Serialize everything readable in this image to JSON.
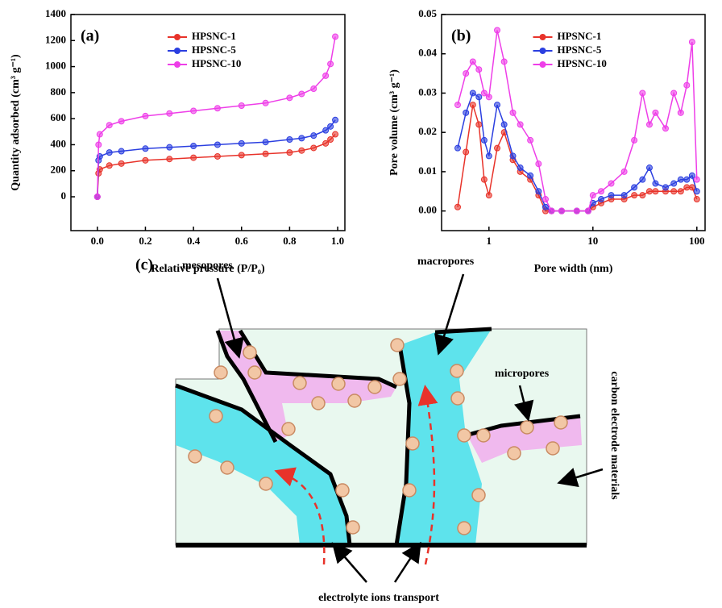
{
  "chart_data": [
    {
      "type": "line",
      "panel_label": "(a)",
      "x_label": "Relative pressure (P/P₀)",
      "y_label": "Quantity adsorbed (cm³ g⁻¹)",
      "x": [
        0.0,
        0.005,
        0.01,
        0.05,
        0.1,
        0.2,
        0.3,
        0.4,
        0.5,
        0.6,
        0.7,
        0.8,
        0.85,
        0.9,
        0.95,
        0.97,
        0.99
      ],
      "series": [
        {
          "name": "HPSNC-1",
          "color": "#e8332a",
          "values": [
            0,
            180,
            210,
            240,
            255,
            280,
            290,
            300,
            310,
            320,
            330,
            340,
            355,
            375,
            410,
            440,
            480
          ]
        },
        {
          "name": "HPSNC-5",
          "color": "#2b3fe0",
          "values": [
            0,
            280,
            310,
            340,
            350,
            370,
            380,
            390,
            400,
            410,
            420,
            440,
            450,
            470,
            510,
            540,
            590
          ]
        },
        {
          "name": "HPSNC-10",
          "color": "#ee3ee8",
          "values": [
            0,
            400,
            480,
            550,
            580,
            620,
            640,
            660,
            680,
            700,
            720,
            760,
            790,
            830,
            930,
            1020,
            1230
          ]
        }
      ],
      "xlim": [
        -0.11,
        1.03
      ],
      "ylim": [
        -260,
        1400
      ],
      "xticks": [
        {
          "value": 0,
          "label": "0.0"
        },
        0.2,
        0.4,
        0.6,
        0.8,
        {
          "value": 1,
          "label": "1.0"
        }
      ],
      "yticks": [
        0,
        200,
        400,
        600,
        800,
        1000,
        1200,
        1400
      ],
      "legend": "upper center"
    },
    {
      "type": "line",
      "panel_label": "(b)",
      "x_label": "Pore width (nm)",
      "y_label": "Pore volume (cm³ g⁻¹)",
      "xlog": true,
      "x": [
        0.5,
        0.6,
        0.7,
        0.8,
        0.9,
        1.0,
        1.2,
        1.4,
        1.7,
        2,
        2.5,
        3,
        3.5,
        4,
        5,
        7,
        9,
        10,
        12,
        15,
        20,
        25,
        30,
        35,
        40,
        50,
        60,
        70,
        80,
        90,
        100
      ],
      "series": [
        {
          "name": "HPSNC-1",
          "color": "#e8332a",
          "values": [
            0.001,
            0.015,
            0.027,
            0.022,
            0.008,
            0.004,
            0.016,
            0.02,
            0.013,
            0.01,
            0.008,
            0.004,
            0,
            0,
            0,
            0,
            0,
            0.001,
            0.002,
            0.003,
            0.003,
            0.004,
            0.004,
            0.005,
            0.005,
            0.005,
            0.005,
            0.005,
            0.006,
            0.006,
            0.003
          ]
        },
        {
          "name": "HPSNC-5",
          "color": "#2b3fe0",
          "values": [
            0.016,
            0.025,
            0.03,
            0.029,
            0.018,
            0.014,
            0.027,
            0.022,
            0.014,
            0.011,
            0.009,
            0.005,
            0.001,
            0,
            0,
            0,
            0,
            0.002,
            0.003,
            0.004,
            0.004,
            0.006,
            0.008,
            0.011,
            0.007,
            0.006,
            0.007,
            0.008,
            0.008,
            0.009,
            0.005
          ]
        },
        {
          "name": "HPSNC-10",
          "color": "#ee3ee8",
          "values": [
            0.027,
            0.035,
            0.038,
            0.036,
            0.03,
            0.029,
            0.046,
            0.038,
            0.025,
            0.022,
            0.018,
            0.012,
            0.003,
            0,
            0,
            0,
            0,
            0.004,
            0.005,
            0.007,
            0.01,
            0.018,
            0.03,
            0.022,
            0.025,
            0.021,
            0.03,
            0.025,
            0.032,
            0.043,
            0.008
          ]
        }
      ],
      "xlim": [
        0.35,
        120
      ],
      "ylim": [
        -0.005,
        0.05
      ],
      "xticks": [
        1,
        10,
        100
      ],
      "yticks": [
        {
          "value": 0,
          "label": "0.00"
        },
        0.01,
        0.02,
        0.03,
        0.04,
        0.05
      ],
      "legend": "upper center"
    }
  ],
  "diagram": {
    "panel_label": "(c)",
    "labels": [
      "mesopores",
      "macropores",
      "micropores",
      "carbon electrode materials",
      "electrolyte ions transport"
    ]
  }
}
